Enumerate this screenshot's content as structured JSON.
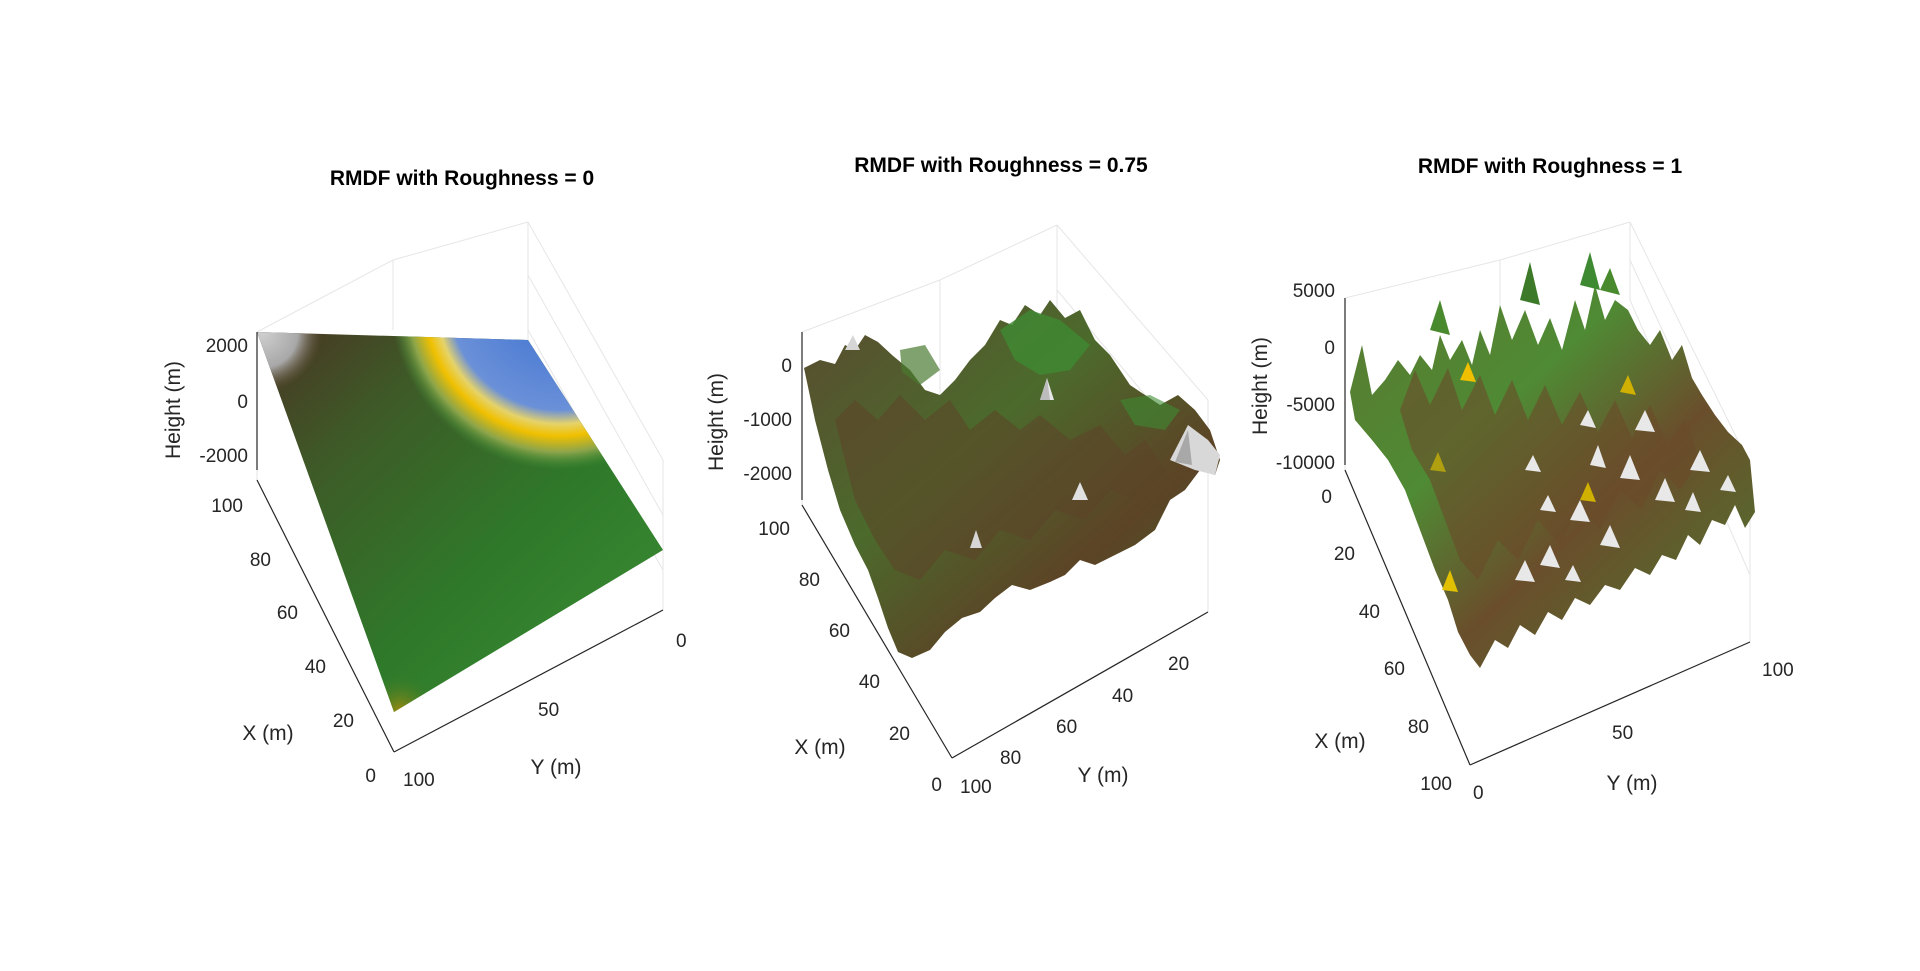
{
  "chart_data": [
    {
      "type": "surface",
      "title": "RMDF with Roughness = 0",
      "xlabel": "X (m)",
      "ylabel": "Y (m)",
      "zlabel": "Height (m)",
      "x_ticks": [
        "0",
        "20",
        "40",
        "60",
        "80",
        "100"
      ],
      "y_ticks": [
        "0",
        "50",
        "100"
      ],
      "z_ticks": [
        "2000",
        "0",
        "-2000"
      ],
      "roughness": 0,
      "colormap": "terrain"
    },
    {
      "type": "surface",
      "title": "RMDF with Roughness = 0.75",
      "xlabel": "X (m)",
      "ylabel": "Y (m)",
      "zlabel": "Height (m)",
      "x_ticks": [
        "0",
        "20",
        "40",
        "60",
        "80",
        "100"
      ],
      "y_ticks": [
        "20",
        "40",
        "60",
        "80",
        "100"
      ],
      "z_ticks": [
        "0",
        "-1000",
        "-2000"
      ],
      "roughness": 0.75,
      "colormap": "terrain"
    },
    {
      "type": "surface",
      "title": "RMDF with Roughness = 1",
      "xlabel": "X (m)",
      "ylabel": "Y (m)",
      "zlabel": "Height (m)",
      "x_ticks": [
        "0",
        "20",
        "40",
        "60",
        "80",
        "100"
      ],
      "y_ticks": [
        "0",
        "50",
        "100"
      ],
      "z_ticks": [
        "5000",
        "0",
        "-5000",
        "-10000"
      ],
      "roughness": 1,
      "colormap": "terrain"
    }
  ]
}
